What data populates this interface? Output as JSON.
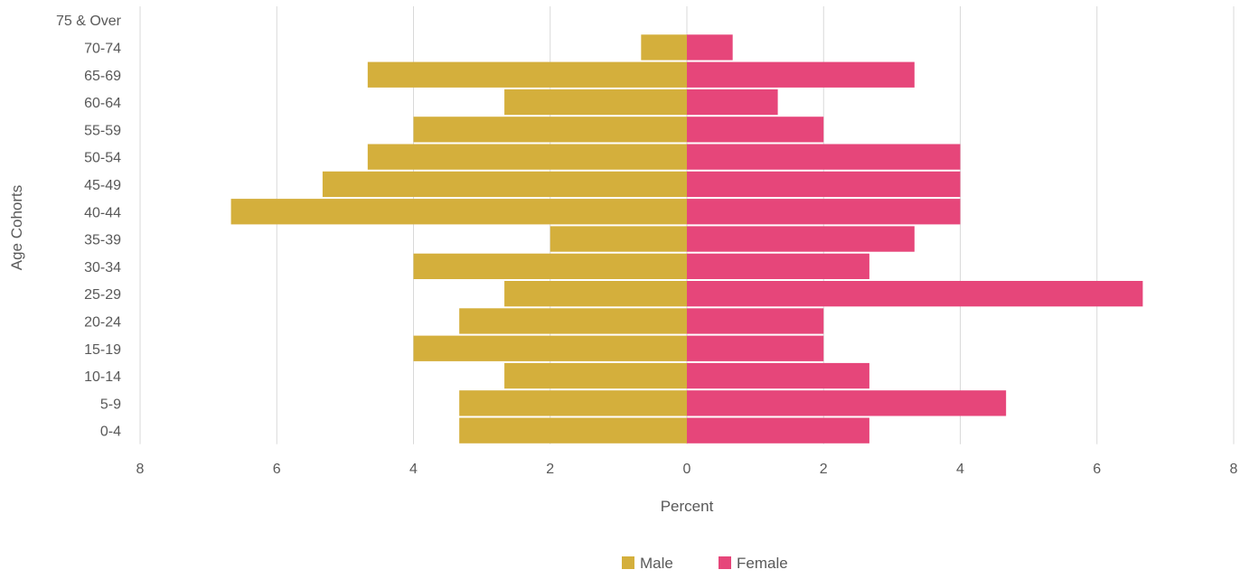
{
  "chart_data": {
    "type": "bar",
    "orientation": "horizontal",
    "subtype": "population-pyramid",
    "categories": [
      "0-4",
      "5-9",
      "10-14",
      "15-19",
      "20-24",
      "25-29",
      "30-34",
      "35-39",
      "40-44",
      "45-49",
      "50-54",
      "55-59",
      "60-64",
      "65-69",
      "70-74",
      "75 & Over"
    ],
    "series": [
      {
        "name": "Male",
        "color": "#d4af3c",
        "values": [
          3.33,
          3.33,
          2.67,
          4.0,
          3.33,
          2.67,
          4.0,
          2.0,
          6.67,
          5.33,
          4.67,
          4.0,
          2.67,
          4.67,
          0.67,
          0
        ]
      },
      {
        "name": "Female",
        "color": "#e6467a",
        "values": [
          2.67,
          4.67,
          2.67,
          2.0,
          2.0,
          6.67,
          2.67,
          3.33,
          4.0,
          4.0,
          4.0,
          2.0,
          1.33,
          3.33,
          0.67,
          0
        ]
      }
    ],
    "xlabel": "Percent",
    "ylabel": "Age Cohorts",
    "xlim": [
      -8,
      8
    ],
    "x_ticks": [
      "8",
      "6",
      "4",
      "2",
      "0",
      "2",
      "4",
      "6",
      "8"
    ],
    "grid": "vertical",
    "legend": "bottom-center"
  }
}
